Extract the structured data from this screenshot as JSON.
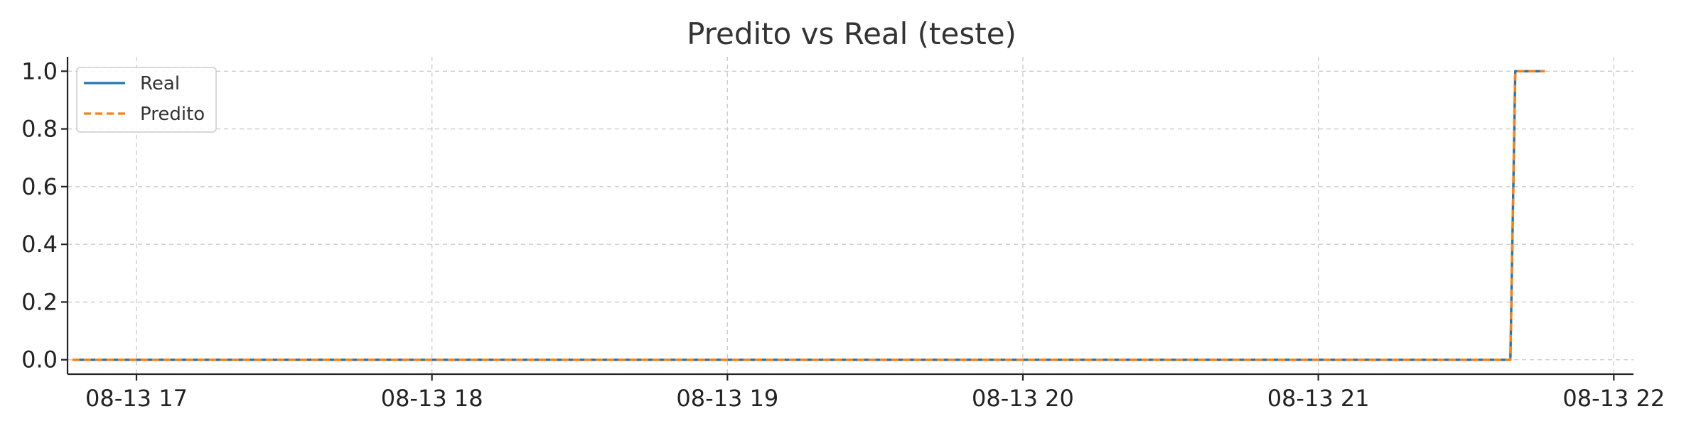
{
  "chart_data": {
    "type": "line",
    "title": "Predito vs Real (teste)",
    "xlabel": "",
    "ylabel": "",
    "x_axis_kind": "datetime",
    "xlim": [
      "08-13 16:46",
      "08-13 22:04"
    ],
    "ylim": [
      -0.05,
      1.05
    ],
    "x_ticks": [
      {
        "value": "08-13 17:00",
        "label": "08-13 17"
      },
      {
        "value": "08-13 18:00",
        "label": "08-13 18"
      },
      {
        "value": "08-13 19:00",
        "label": "08-13 19"
      },
      {
        "value": "08-13 20:00",
        "label": "08-13 20"
      },
      {
        "value": "08-13 21:00",
        "label": "08-13 21"
      },
      {
        "value": "08-13 22:00",
        "label": "08-13 22"
      }
    ],
    "y_ticks": [
      0.0,
      0.2,
      0.4,
      0.6,
      0.8,
      1.0
    ],
    "y_tick_labels": [
      "0.0",
      "0.2",
      "0.4",
      "0.6",
      "0.8",
      "1.0"
    ],
    "grid": true,
    "legend": "top-left",
    "series": [
      {
        "name": "Real",
        "color": "#1f77b4",
        "style": "solid",
        "x": [
          "08-13 16:47",
          "08-13 21:39",
          "08-13 21:40",
          "08-13 21:46"
        ],
        "y": [
          0,
          0,
          1,
          1
        ]
      },
      {
        "name": "Predito",
        "color": "#ff7f0e",
        "style": "dashed",
        "x": [
          "08-13 16:47",
          "08-13 21:39",
          "08-13 21:40",
          "08-13 21:46"
        ],
        "y": [
          0,
          0,
          1,
          1
        ]
      }
    ]
  }
}
